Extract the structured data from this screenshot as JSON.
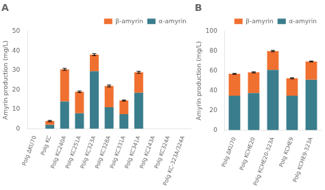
{
  "chart_data": [
    {
      "type": "bar",
      "title": "A",
      "stacked": true,
      "categories": [
        "PoIg ΔKU70",
        "PoIg KC",
        "PoIg KC240A",
        "PoIg KC251A",
        "PoIg KC323A",
        "PoIg KC328A",
        "PoIg KC331A",
        "PoIg KC341A",
        "PoIg KC243A",
        "PoIg KC324A",
        "PoIg KC-323A/324A"
      ],
      "series": [
        {
          "name": "α-amyrin",
          "color": "#3a7d8c",
          "values": [
            0,
            2.0,
            14.0,
            8.0,
            29.5,
            11.0,
            7.5,
            18.5,
            0,
            0,
            0
          ]
        },
        {
          "name": "β-amyrin",
          "color": "#f07030",
          "values": [
            0,
            2.0,
            16.5,
            11.0,
            8.5,
            11.0,
            7.0,
            10.5,
            0,
            0,
            0
          ]
        }
      ],
      "errors": [
        0,
        0.3,
        0.5,
        0.4,
        0.5,
        0.5,
        0.3,
        0.5,
        0,
        0,
        0
      ],
      "ylabel": "Amyrin production (mg/L)",
      "ylim": [
        0,
        50
      ],
      "yticks": [
        0,
        10,
        20,
        30,
        40,
        50
      ],
      "grid": false,
      "legend": "upper right"
    },
    {
      "type": "bar",
      "title": "B",
      "stacked": true,
      "categories": [
        "PoIg ΔKU70",
        "PoIg KCHE20",
        "PoIg KCHE20-323A",
        "PoIg KCHE9",
        "PoIg KCHE9-323A"
      ],
      "series": [
        {
          "name": "α-amyrin",
          "color": "#3a7d8c",
          "values": [
            35.0,
            37.5,
            61.0,
            35.0,
            51.0
          ]
        },
        {
          "name": "β-amyrin",
          "color": "#f07030",
          "values": [
            22.0,
            21.0,
            19.0,
            17.5,
            18.5
          ]
        }
      ],
      "errors": [
        0.5,
        0.6,
        0.7,
        0.5,
        0.5
      ],
      "ylabel": "Amyrin production (mg/L)",
      "ylim": [
        0,
        100
      ],
      "yticks": [
        0,
        20,
        40,
        60,
        80,
        100
      ],
      "grid": false,
      "legend": "upper right"
    }
  ]
}
